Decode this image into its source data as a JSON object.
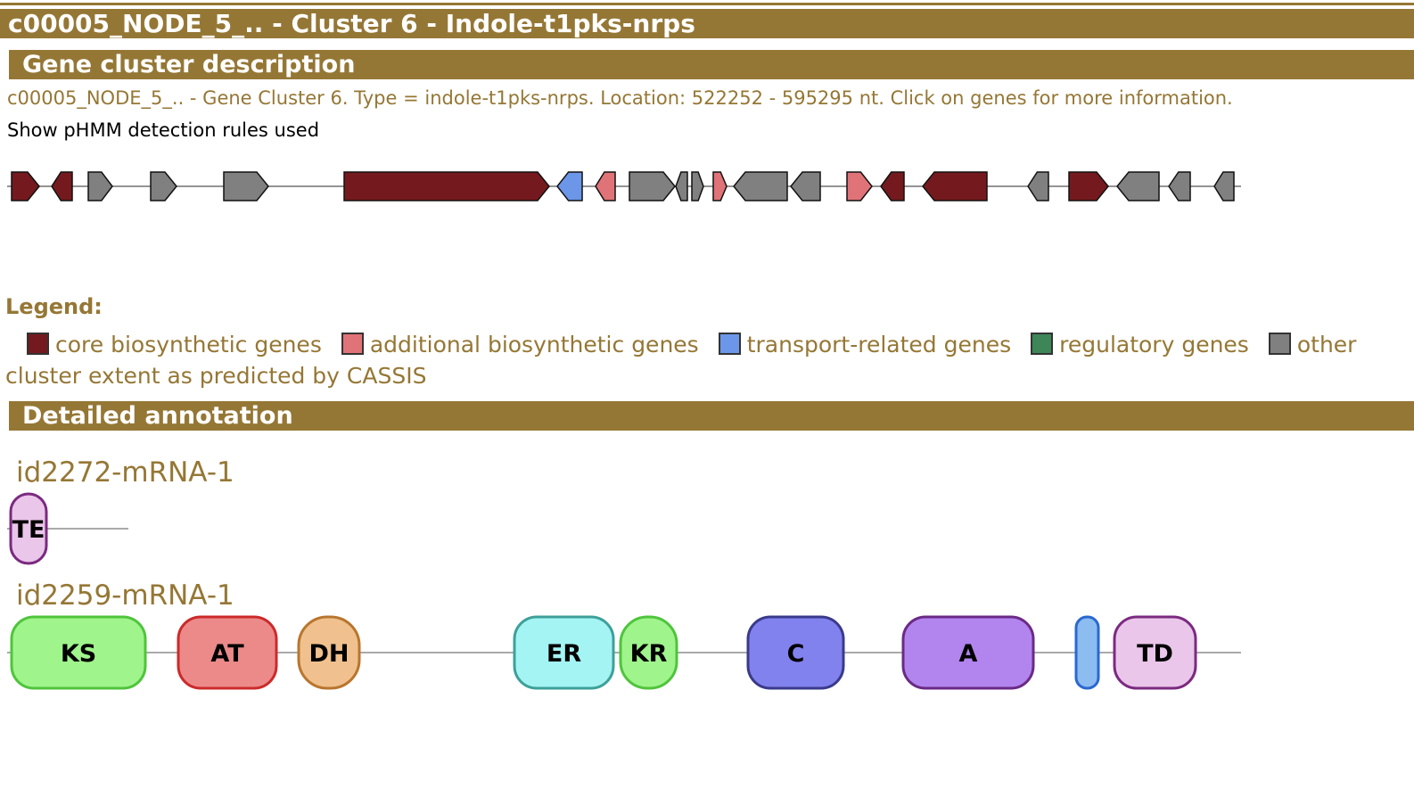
{
  "page": {
    "title": "c00005_NODE_5_.. - Cluster 6 - Indole-t1pks-nrps"
  },
  "description_section": {
    "heading": "Gene cluster description",
    "text": "c00005_NODE_5_.. - Gene Cluster 6. Type = indole-t1pks-nrps. Location: 522252 - 595295 nt. Click on genes for more information.",
    "rules_link": "Show pHMM detection rules used"
  },
  "colors": {
    "accent": "#957735",
    "core": "#741a1e",
    "additional": "#e07378",
    "transport": "#6c96e8",
    "regulatory": "#3e8658",
    "other": "#808080"
  },
  "genes": [
    {
      "strand": "+",
      "type": "core"
    },
    {
      "strand": "-",
      "type": "core"
    },
    {
      "strand": "+",
      "type": "other"
    },
    {
      "strand": "+",
      "type": "other"
    },
    {
      "strand": "+",
      "type": "other"
    },
    {
      "strand": "+",
      "type": "core"
    },
    {
      "strand": "-",
      "type": "transport"
    },
    {
      "strand": "-",
      "type": "additional"
    },
    {
      "strand": "+",
      "type": "other"
    },
    {
      "strand": "-",
      "type": "other"
    },
    {
      "strand": "+",
      "type": "other"
    },
    {
      "strand": "+",
      "type": "additional"
    },
    {
      "strand": "-",
      "type": "other"
    },
    {
      "strand": "-",
      "type": "other"
    },
    {
      "strand": "+",
      "type": "additional"
    },
    {
      "strand": "-",
      "type": "core"
    },
    {
      "strand": "-",
      "type": "core"
    },
    {
      "strand": "-",
      "type": "other"
    },
    {
      "strand": "+",
      "type": "core"
    },
    {
      "strand": "-",
      "type": "other"
    },
    {
      "strand": "-",
      "type": "other"
    },
    {
      "strand": "-",
      "type": "other"
    }
  ],
  "legend": {
    "title": "Legend:",
    "items": [
      {
        "label": "core biosynthetic genes",
        "color": "#741a1e"
      },
      {
        "label": "additional biosynthetic genes",
        "color": "#e07378"
      },
      {
        "label": "transport-related genes",
        "color": "#6c96e8"
      },
      {
        "label": "regulatory genes",
        "color": "#3e8658"
      },
      {
        "label": "other",
        "color": "#808080"
      }
    ],
    "extent_text": "cluster extent as predicted by CASSIS"
  },
  "annotation_section": {
    "heading": "Detailed annotation",
    "genes": [
      {
        "id": "id2272-mRNA-1",
        "domains": [
          {
            "label": "TE",
            "fill": "#eac6ea",
            "stroke": "#7b2a80"
          }
        ]
      },
      {
        "id": "id2259-mRNA-1",
        "domains": [
          {
            "label": "KS",
            "fill": "#a0f48c",
            "stroke": "#4fc43c"
          },
          {
            "label": "AT",
            "fill": "#ec8a8a",
            "stroke": "#cc2a2a"
          },
          {
            "label": "DH",
            "fill": "#f0c18e",
            "stroke": "#b8762e"
          },
          {
            "label": "ER",
            "fill": "#a4f4f4",
            "stroke": "#3ea09a"
          },
          {
            "label": "KR",
            "fill": "#a0f48c",
            "stroke": "#4fc43c"
          },
          {
            "label": "C",
            "fill": "#8282ee",
            "stroke": "#3a3a8c"
          },
          {
            "label": "A",
            "fill": "#b284ee",
            "stroke": "#6a2a86"
          },
          {
            "label": "",
            "fill": "#8cbcf0",
            "stroke": "#2a68d0"
          },
          {
            "label": "TD",
            "fill": "#eac6ea",
            "stroke": "#7b2a80"
          }
        ]
      }
    ]
  }
}
